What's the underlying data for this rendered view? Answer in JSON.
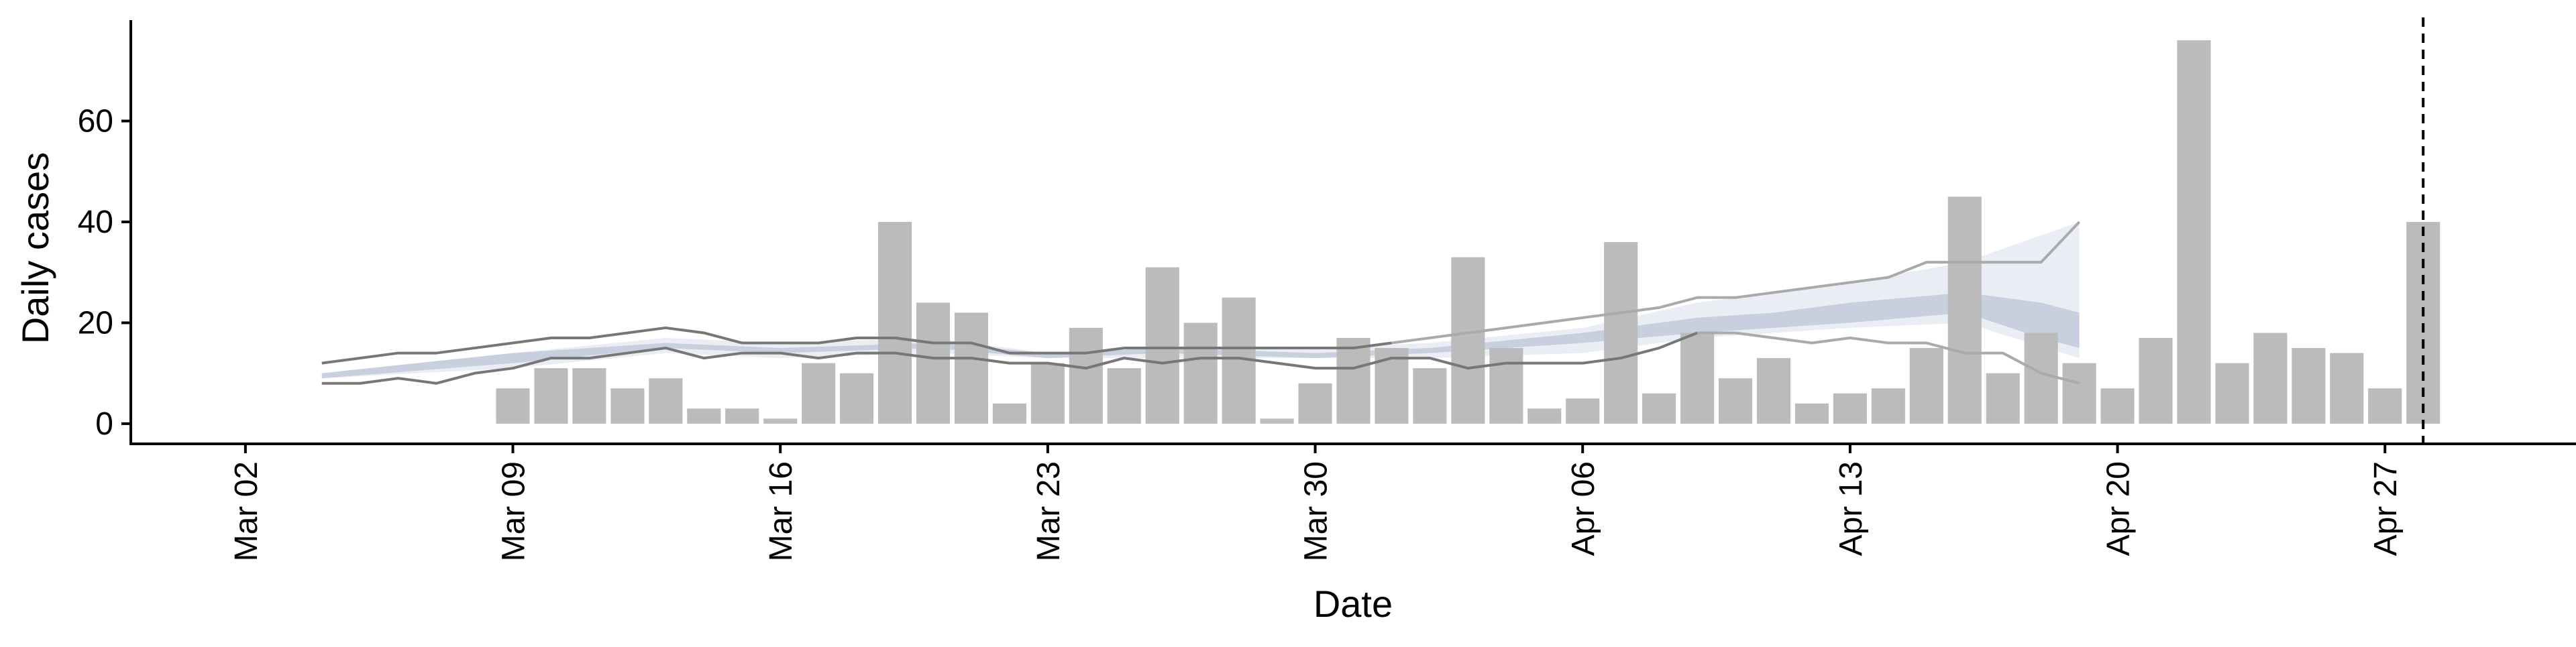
{
  "chart_data": {
    "type": "bar",
    "xlabel": "Date",
    "ylabel": "Daily cases",
    "xlim": [
      "2020-02-28",
      "2020-05-02"
    ],
    "ylim": [
      -4,
      80
    ],
    "x_ticks": [
      {
        "date": "2020-03-02",
        "label": "Mar 02"
      },
      {
        "date": "2020-03-09",
        "label": "Mar 09"
      },
      {
        "date": "2020-03-16",
        "label": "Mar 16"
      },
      {
        "date": "2020-03-23",
        "label": "Mar 23"
      },
      {
        "date": "2020-03-30",
        "label": "Mar 30"
      },
      {
        "date": "2020-04-06",
        "label": "Apr 06"
      },
      {
        "date": "2020-04-13",
        "label": "Apr 13"
      },
      {
        "date": "2020-04-20",
        "label": "Apr 20"
      },
      {
        "date": "2020-04-27",
        "label": "Apr 27"
      }
    ],
    "y_ticks": [
      0,
      20,
      40,
      60
    ],
    "grid": false,
    "legend": "none",
    "bars": {
      "color": "#bbbbbb",
      "dates": [
        "2020-03-09",
        "2020-03-10",
        "2020-03-11",
        "2020-03-12",
        "2020-03-13",
        "2020-03-14",
        "2020-03-15",
        "2020-03-16",
        "2020-03-17",
        "2020-03-18",
        "2020-03-19",
        "2020-03-20",
        "2020-03-21",
        "2020-03-22",
        "2020-03-23",
        "2020-03-24",
        "2020-03-25",
        "2020-03-26",
        "2020-03-27",
        "2020-03-28",
        "2020-03-29",
        "2020-03-30",
        "2020-03-31",
        "2020-04-01",
        "2020-04-02",
        "2020-04-03",
        "2020-04-04",
        "2020-04-05",
        "2020-04-06",
        "2020-04-07",
        "2020-04-08",
        "2020-04-09",
        "2020-04-10",
        "2020-04-11",
        "2020-04-12",
        "2020-04-13",
        "2020-04-14",
        "2020-04-15",
        "2020-04-16",
        "2020-04-17",
        "2020-04-18",
        "2020-04-19",
        "2020-04-20",
        "2020-04-21",
        "2020-04-22",
        "2020-04-23",
        "2020-04-24",
        "2020-04-25",
        "2020-04-26",
        "2020-04-27",
        "2020-04-28"
      ],
      "values": [
        7,
        11,
        11,
        7,
        9,
        3,
        3,
        1,
        12,
        10,
        40,
        24,
        22,
        4,
        12,
        19,
        11,
        31,
        20,
        25,
        1,
        8,
        17,
        15,
        11,
        33,
        15,
        3,
        5,
        36,
        6,
        18,
        9,
        13,
        4,
        6,
        7,
        15,
        45,
        10,
        18,
        12,
        7,
        17,
        76,
        12,
        18,
        15,
        14,
        7,
        40
      ]
    },
    "series": [
      {
        "kind": "upper-bound",
        "color": "#777777",
        "dates": [
          "2020-03-04",
          "2020-03-05",
          "2020-03-06",
          "2020-03-07",
          "2020-03-08",
          "2020-03-09",
          "2020-03-10",
          "2020-03-11",
          "2020-03-12",
          "2020-03-13",
          "2020-03-14",
          "2020-03-15",
          "2020-03-16",
          "2020-03-17",
          "2020-03-18",
          "2020-03-19",
          "2020-03-20",
          "2020-03-21",
          "2020-03-22",
          "2020-03-23",
          "2020-03-24",
          "2020-03-25",
          "2020-03-26",
          "2020-03-27",
          "2020-03-28",
          "2020-03-29",
          "2020-03-30",
          "2020-03-31",
          "2020-04-01"
        ],
        "values": [
          12,
          13,
          14,
          14,
          15,
          16,
          17,
          17,
          18,
          19,
          18,
          16,
          16,
          16,
          17,
          17,
          16,
          16,
          14,
          14,
          14,
          15,
          15,
          15,
          15,
          15,
          15,
          15,
          16
        ]
      },
      {
        "kind": "lower-bound",
        "color": "#777777",
        "dates": [
          "2020-03-04",
          "2020-03-05",
          "2020-03-06",
          "2020-03-07",
          "2020-03-08",
          "2020-03-09",
          "2020-03-10",
          "2020-03-11",
          "2020-03-12",
          "2020-03-13",
          "2020-03-14",
          "2020-03-15",
          "2020-03-16",
          "2020-03-17",
          "2020-03-18",
          "2020-03-19",
          "2020-03-20",
          "2020-03-21",
          "2020-03-22",
          "2020-03-23",
          "2020-03-24",
          "2020-03-25",
          "2020-03-26",
          "2020-03-27",
          "2020-03-28",
          "2020-03-29",
          "2020-03-30",
          "2020-03-31",
          "2020-04-01",
          "2020-04-02",
          "2020-04-03",
          "2020-04-04",
          "2020-04-05",
          "2020-04-06",
          "2020-04-07",
          "2020-04-08",
          "2020-04-09"
        ],
        "values": [
          8,
          8,
          9,
          8,
          10,
          11,
          13,
          13,
          14,
          15,
          13,
          14,
          14,
          13,
          14,
          14,
          13,
          13,
          12,
          12,
          11,
          13,
          12,
          13,
          13,
          12,
          11,
          11,
          13,
          13,
          11,
          12,
          12,
          12,
          13,
          15,
          18
        ]
      },
      {
        "kind": "upper-bound",
        "color": "#aaaaaa",
        "dates": [
          "2020-04-01",
          "2020-04-08",
          "2020-04-09",
          "2020-04-10",
          "2020-04-14",
          "2020-04-15",
          "2020-04-16",
          "2020-04-17",
          "2020-04-18",
          "2020-04-19"
        ],
        "values": [
          16,
          23,
          25,
          25,
          29,
          32,
          32,
          32,
          32,
          40
        ]
      },
      {
        "kind": "lower-bound",
        "color": "#aaaaaa",
        "dates": [
          "2020-04-09",
          "2020-04-10",
          "2020-04-11",
          "2020-04-12",
          "2020-04-13",
          "2020-04-14",
          "2020-04-15",
          "2020-04-16",
          "2020-04-17",
          "2020-04-18",
          "2020-04-19"
        ],
        "values": [
          18,
          18,
          17,
          16,
          17,
          16,
          16,
          14,
          14,
          10,
          8
        ]
      }
    ],
    "bands": [
      {
        "kind": "outer",
        "color": "#dde1ec",
        "dates": [
          "2020-03-04",
          "2020-03-09",
          "2020-03-13",
          "2020-03-16",
          "2020-03-20",
          "2020-03-23",
          "2020-03-26",
          "2020-03-30",
          "2020-04-02",
          "2020-04-06",
          "2020-04-09",
          "2020-04-13",
          "2020-04-16",
          "2020-04-19"
        ],
        "lower": [
          9,
          11,
          14,
          13,
          14,
          13,
          13,
          13,
          13,
          14,
          17,
          19,
          20,
          13
        ],
        "upper": [
          10,
          14,
          17,
          16,
          17,
          14,
          15,
          15,
          16,
          19,
          24,
          28,
          32,
          40
        ]
      },
      {
        "kind": "inner",
        "color": "#b9c2d6",
        "dates": [
          "2020-03-04",
          "2020-03-09",
          "2020-03-13",
          "2020-03-16",
          "2020-03-20",
          "2020-03-23",
          "2020-03-26",
          "2020-03-30",
          "2020-04-02",
          "2020-04-06",
          "2020-04-09",
          "2020-04-11",
          "2020-04-13",
          "2020-04-16",
          "2020-04-18",
          "2020-04-19"
        ],
        "lower": [
          9,
          12,
          15,
          14,
          15,
          13,
          14,
          13,
          14,
          16,
          18,
          19,
          20,
          22,
          17,
          15
        ],
        "upper": [
          10,
          14,
          16,
          15,
          16,
          14,
          15,
          14,
          15,
          18,
          21,
          22,
          24,
          26,
          24,
          22
        ]
      }
    ],
    "vline": {
      "date": "2020-04-28",
      "style": "dashed",
      "color": "#000000"
    }
  }
}
